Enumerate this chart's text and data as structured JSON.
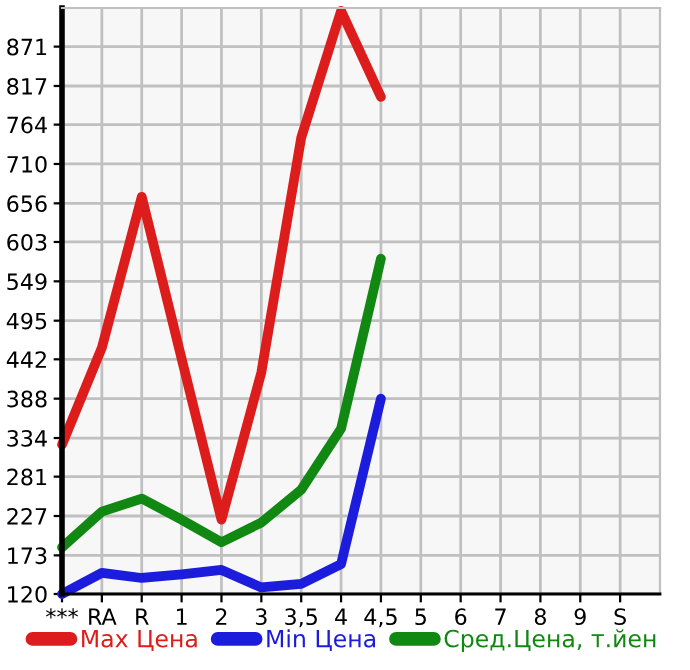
{
  "chart_data": {
    "type": "line",
    "categories": [
      "***",
      "RA",
      "R",
      "1",
      "2",
      "3",
      "3,5",
      "4",
      "4,5",
      "5",
      "6",
      "7",
      "8",
      "9",
      "S"
    ],
    "series": [
      {
        "name": "Max Цена",
        "color": "#dd1c1c",
        "values": [
          325,
          458,
          665,
          443,
          222,
          424,
          746,
          920,
          802,
          null,
          null,
          null,
          null,
          null,
          null
        ]
      },
      {
        "name": "Min Цена",
        "color": "#1c1cdd",
        "values": [
          120,
          149,
          142,
          147,
          153,
          129,
          134,
          161,
          388,
          null,
          null,
          null,
          null,
          null,
          null
        ]
      },
      {
        "name": "Сред.Цена, т.йен",
        "color": "#118811",
        "values": [
          184,
          233,
          251,
          222,
          191,
          218,
          263,
          347,
          580,
          null,
          null,
          null,
          null,
          null,
          null
        ]
      }
    ],
    "ylim": [
      120,
      924
    ],
    "yticks": [
      120,
      173,
      227,
      281,
      334,
      388,
      442,
      495,
      549,
      603,
      656,
      710,
      764,
      817,
      871
    ],
    "grid": true,
    "legend": "bottom",
    "marker": "none",
    "line_style": "solid"
  }
}
